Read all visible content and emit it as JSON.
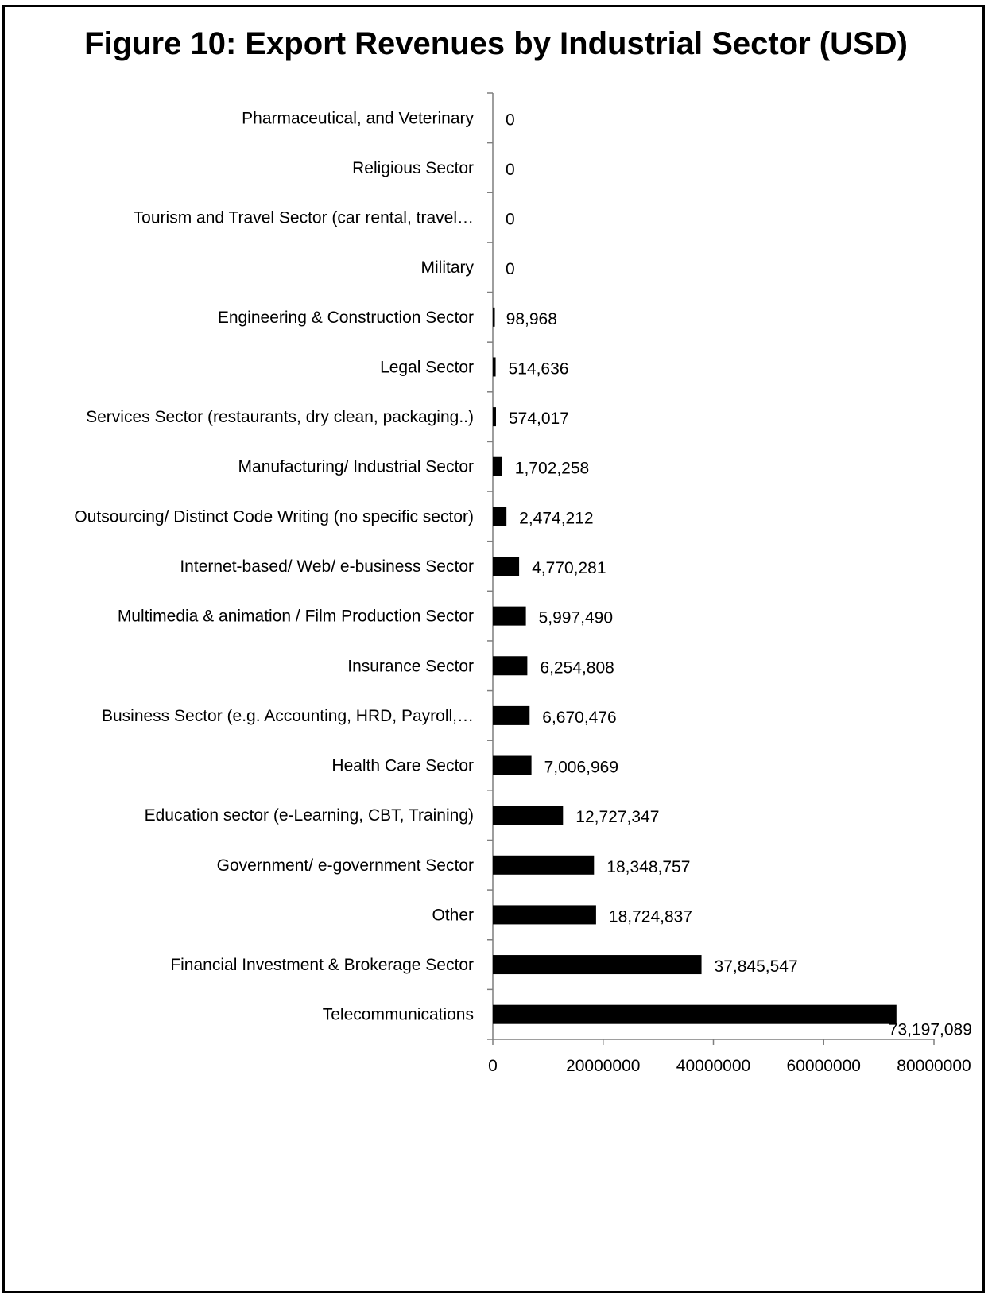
{
  "chart_data": {
    "type": "bar",
    "orientation": "horizontal",
    "title": "Figure 10: Export Revenues by Industrial Sector (USD)",
    "xlabel": "",
    "ylabel": "",
    "xlim": [
      0,
      80000000
    ],
    "grid": false,
    "legend": "none",
    "bar_color": "#000000",
    "x_ticks": [
      0,
      20000000,
      40000000,
      60000000,
      80000000
    ],
    "x_tick_labels": [
      "0",
      "20000000",
      "40000000",
      "60000000",
      "80000000"
    ],
    "categories": [
      "Pharmaceutical, and Veterinary",
      "Religious Sector",
      "Tourism and Travel Sector (car rental, travel…",
      "Military",
      "Engineering & Construction Sector",
      "Legal Sector",
      "Services Sector (restaurants, dry clean, packaging..)",
      "Manufacturing/ Industrial Sector",
      "Outsourcing/ Distinct Code Writing (no specific sector)",
      "Internet-based/ Web/ e-business Sector",
      "Multimedia & animation / Film Production Sector",
      "Insurance Sector",
      "Business Sector  (e.g. Accounting, HRD, Payroll,…",
      "Health Care Sector",
      "Education sector (e-Learning, CBT, Training)",
      "Government/ e-government Sector",
      "Other",
      "Financial Investment & Brokerage Sector",
      "Telecommunications"
    ],
    "values": [
      0,
      0,
      0,
      0,
      98968,
      514636,
      574017,
      1702258,
      2474212,
      4770281,
      5997490,
      6254808,
      6670476,
      7006969,
      12727347,
      18348757,
      18724837,
      37845547,
      73197089
    ],
    "value_labels": [
      "0",
      "0",
      "0",
      "0",
      "98,968",
      "514,636",
      "574,017",
      "1,702,258",
      "2,474,212",
      "4,770,281",
      "5,997,490",
      "6,254,808",
      "6,670,476",
      "7,006,969",
      "12,727,347",
      "18,348,757",
      "18,724,837",
      "37,845,547",
      "73,197,089"
    ]
  }
}
